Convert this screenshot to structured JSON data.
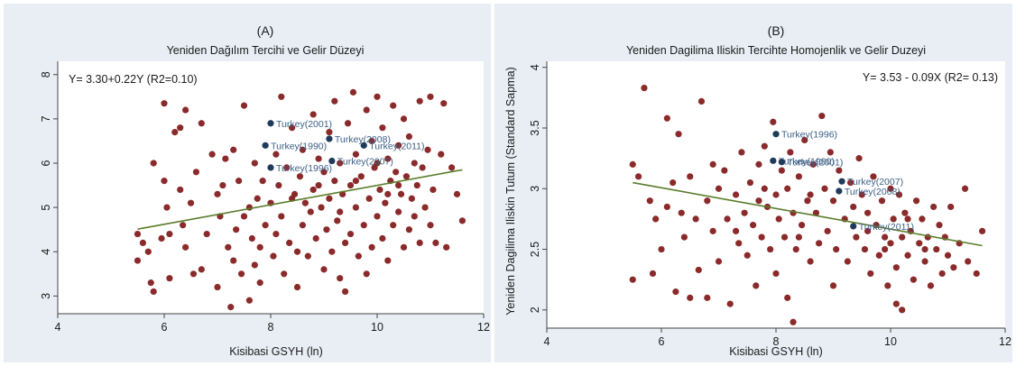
{
  "chart_data": [
    {
      "type": "scatter",
      "panel_label": "(A)",
      "title": "Yeniden Dağılım Tercihi ve Gelir Düzeyi",
      "xlabel": "Kisibasi GSYH (ln)",
      "ylabel": "",
      "xlim": [
        4,
        12
      ],
      "ylim": [
        2.6,
        8.3
      ],
      "xticks": [
        4,
        6,
        8,
        10,
        12
      ],
      "yticks": [
        3,
        4,
        5,
        6,
        7,
        8
      ],
      "equation": "Y= 3.30+0.22Y (R2=0.10)",
      "grid": false,
      "point_color": "#8b2a2a",
      "highlight_color": "#1f3b5c",
      "line_color": "#5a7d2a",
      "fit_line": {
        "x": [
          5.5,
          11.6
        ],
        "y": [
          4.51,
          5.85
        ]
      },
      "highlights": [
        {
          "label": "Turkey(2001)",
          "x": 8.0,
          "y": 6.9
        },
        {
          "label": "Turkey(2008)",
          "x": 9.1,
          "y": 6.55
        },
        {
          "label": "Turkey(1990)",
          "x": 7.9,
          "y": 6.4
        },
        {
          "label": "Turkey(2011)",
          "x": 9.75,
          "y": 6.4
        },
        {
          "label": "Turkey(2007)",
          "x": 9.15,
          "y": 6.05
        },
        {
          "label": "Turkey(1996)",
          "x": 8.0,
          "y": 5.9
        }
      ],
      "points": [
        [
          5.5,
          4.4
        ],
        [
          5.5,
          3.8
        ],
        [
          5.6,
          4.2
        ],
        [
          5.7,
          4.0
        ],
        [
          5.75,
          3.3
        ],
        [
          5.8,
          3.1
        ],
        [
          5.8,
          6.0
        ],
        [
          5.95,
          4.3
        ],
        [
          6.0,
          7.35
        ],
        [
          6.0,
          5.6
        ],
        [
          6.05,
          5.0
        ],
        [
          6.1,
          4.4
        ],
        [
          6.1,
          3.4
        ],
        [
          6.2,
          6.7
        ],
        [
          6.3,
          6.8
        ],
        [
          6.3,
          5.4
        ],
        [
          6.35,
          4.6
        ],
        [
          6.4,
          7.2
        ],
        [
          6.4,
          4.1
        ],
        [
          6.5,
          5.1
        ],
        [
          6.55,
          3.5
        ],
        [
          6.6,
          5.8
        ],
        [
          6.7,
          3.6
        ],
        [
          6.7,
          6.9
        ],
        [
          6.8,
          4.4
        ],
        [
          6.9,
          6.2
        ],
        [
          7.0,
          5.3
        ],
        [
          7.0,
          3.2
        ],
        [
          7.05,
          4.8
        ],
        [
          7.1,
          5.5
        ],
        [
          7.15,
          6.1
        ],
        [
          7.2,
          4.1
        ],
        [
          7.25,
          2.75
        ],
        [
          7.3,
          3.8
        ],
        [
          7.3,
          6.3
        ],
        [
          7.35,
          4.5
        ],
        [
          7.4,
          5.6
        ],
        [
          7.45,
          3.5
        ],
        [
          7.5,
          4.8
        ],
        [
          7.5,
          7.3
        ],
        [
          7.6,
          5.0
        ],
        [
          7.6,
          2.9
        ],
        [
          7.65,
          4.3
        ],
        [
          7.7,
          6.0
        ],
        [
          7.7,
          3.7
        ],
        [
          7.75,
          5.2
        ],
        [
          7.8,
          4.1
        ],
        [
          7.8,
          3.3
        ],
        [
          7.85,
          5.6
        ],
        [
          7.9,
          4.6
        ],
        [
          8.0,
          5.1
        ],
        [
          8.05,
          3.9
        ],
        [
          8.1,
          6.2
        ],
        [
          8.1,
          4.4
        ],
        [
          8.15,
          5.5
        ],
        [
          8.2,
          7.5
        ],
        [
          8.2,
          4.8
        ],
        [
          8.25,
          3.5
        ],
        [
          8.3,
          5.9
        ],
        [
          8.35,
          4.2
        ],
        [
          8.4,
          6.8
        ],
        [
          8.45,
          5.3
        ],
        [
          8.5,
          4.0
        ],
        [
          8.5,
          3.2
        ],
        [
          8.55,
          5.7
        ],
        [
          8.6,
          4.6
        ],
        [
          8.6,
          6.3
        ],
        [
          8.65,
          5.1
        ],
        [
          8.7,
          3.9
        ],
        [
          8.75,
          4.9
        ],
        [
          8.8,
          7.1
        ],
        [
          8.8,
          5.4
        ],
        [
          8.85,
          4.3
        ],
        [
          8.9,
          6.1
        ],
        [
          8.95,
          5.0
        ],
        [
          9.0,
          3.6
        ],
        [
          9.0,
          5.8
        ],
        [
          9.05,
          4.5
        ],
        [
          9.1,
          6.7
        ],
        [
          9.1,
          5.2
        ],
        [
          9.15,
          4.0
        ],
        [
          9.2,
          7.4
        ],
        [
          9.2,
          5.6
        ],
        [
          9.25,
          4.7
        ],
        [
          9.3,
          3.4
        ],
        [
          9.3,
          6.0
        ],
        [
          9.35,
          5.3
        ],
        [
          9.4,
          4.2
        ],
        [
          9.4,
          3.1
        ],
        [
          9.45,
          6.9
        ],
        [
          9.5,
          5.5
        ],
        [
          9.5,
          4.4
        ],
        [
          9.55,
          7.6
        ],
        [
          9.6,
          5.0
        ],
        [
          9.6,
          6.2
        ],
        [
          9.65,
          3.9
        ],
        [
          9.7,
          5.7
        ],
        [
          9.75,
          4.6
        ],
        [
          9.8,
          7.2
        ],
        [
          9.8,
          3.5
        ],
        [
          9.85,
          5.2
        ],
        [
          9.9,
          6.5
        ],
        [
          9.9,
          4.1
        ],
        [
          9.95,
          5.9
        ],
        [
          10.0,
          7.5
        ],
        [
          10.0,
          4.8
        ],
        [
          10.05,
          5.4
        ],
        [
          10.1,
          6.8
        ],
        [
          10.1,
          4.3
        ],
        [
          10.15,
          5.1
        ],
        [
          10.2,
          6.1
        ],
        [
          10.2,
          3.8
        ],
        [
          10.25,
          5.6
        ],
        [
          10.3,
          7.3
        ],
        [
          10.3,
          4.6
        ],
        [
          10.35,
          5.8
        ],
        [
          10.4,
          6.4
        ],
        [
          10.4,
          4.9
        ],
        [
          10.45,
          5.3
        ],
        [
          10.5,
          7.0
        ],
        [
          10.5,
          4.1
        ],
        [
          10.55,
          5.7
        ],
        [
          10.6,
          6.6
        ],
        [
          10.6,
          4.5
        ],
        [
          10.65,
          5.2
        ],
        [
          10.7,
          6.0
        ],
        [
          10.7,
          4.8
        ],
        [
          10.75,
          5.5
        ],
        [
          10.8,
          7.4
        ],
        [
          10.8,
          4.2
        ],
        [
          10.85,
          5.9
        ],
        [
          10.9,
          5.0
        ],
        [
          10.95,
          6.3
        ],
        [
          11.0,
          4.6
        ],
        [
          11.0,
          7.5
        ],
        [
          11.05,
          5.4
        ],
        [
          11.1,
          4.2
        ],
        [
          11.2,
          6.2
        ],
        [
          11.25,
          7.35
        ],
        [
          11.3,
          4.1
        ],
        [
          11.4,
          5.9
        ],
        [
          11.5,
          5.3
        ],
        [
          11.6,
          4.7
        ],
        [
          10.2,
          5.3
        ],
        [
          9.6,
          5.6
        ],
        [
          8.9,
          5.5
        ],
        [
          9.3,
          4.9
        ],
        [
          10.4,
          5.5
        ],
        [
          10.0,
          6.0
        ],
        [
          8.4,
          5.2
        ]
      ]
    },
    {
      "type": "scatter",
      "panel_label": "(B)",
      "title": "Yeniden Dagilima Iliskin Tercihte Homojenlik ve Gelir Duzeyi",
      "xlabel": "Kisibasi GSYH (ln)",
      "ylabel": "Yeniden Dagilima Iliskin Tutum (Standard Sapma)",
      "xlim": [
        4,
        12
      ],
      "ylim": [
        1.85,
        4.05
      ],
      "xticks": [
        4,
        6,
        8,
        10,
        12
      ],
      "yticks": [
        2,
        2.5,
        3,
        3.5,
        4
      ],
      "equation": "Y= 3.53 - 0.09X (R2= 0.13)",
      "grid": false,
      "point_color": "#8b2a2a",
      "highlight_color": "#1f3b5c",
      "line_color": "#5a7d2a",
      "fit_line": {
        "x": [
          5.5,
          11.6
        ],
        "y": [
          3.05,
          2.53
        ]
      },
      "highlights": [
        {
          "label": "Turkey(1996)",
          "x": 8.0,
          "y": 3.45
        },
        {
          "label": "Turkey(1990)",
          "x": 7.95,
          "y": 3.23
        },
        {
          "label": "Turkey(2001)",
          "x": 8.1,
          "y": 3.22
        },
        {
          "label": "Turkey(2007)",
          "x": 9.15,
          "y": 3.06
        },
        {
          "label": "Turkey(2008)",
          "x": 9.1,
          "y": 2.98
        },
        {
          "label": "Turkey(2011)",
          "x": 9.35,
          "y": 2.69
        }
      ],
      "points": [
        [
          5.5,
          3.2
        ],
        [
          5.5,
          2.25
        ],
        [
          5.6,
          3.1
        ],
        [
          5.7,
          3.83
        ],
        [
          5.8,
          2.9
        ],
        [
          5.85,
          2.3
        ],
        [
          5.9,
          2.75
        ],
        [
          6.0,
          2.5
        ],
        [
          6.1,
          3.58
        ],
        [
          6.1,
          2.85
        ],
        [
          6.2,
          3.05
        ],
        [
          6.25,
          2.15
        ],
        [
          6.3,
          3.45
        ],
        [
          6.35,
          2.8
        ],
        [
          6.4,
          2.6
        ],
        [
          6.5,
          3.1
        ],
        [
          6.5,
          2.1
        ],
        [
          6.6,
          2.75
        ],
        [
          6.65,
          2.33
        ],
        [
          6.7,
          3.72
        ],
        [
          6.8,
          2.9
        ],
        [
          6.8,
          2.1
        ],
        [
          6.9,
          2.65
        ],
        [
          7.0,
          3.0
        ],
        [
          7.0,
          2.4
        ],
        [
          7.1,
          3.15
        ],
        [
          7.15,
          2.75
        ],
        [
          7.2,
          2.05
        ],
        [
          7.3,
          2.95
        ],
        [
          7.35,
          2.55
        ],
        [
          7.4,
          3.3
        ],
        [
          7.45,
          2.8
        ],
        [
          7.5,
          2.45
        ],
        [
          7.55,
          3.05
        ],
        [
          7.6,
          2.7
        ],
        [
          7.65,
          2.2
        ],
        [
          7.7,
          3.2
        ],
        [
          7.7,
          2.9
        ],
        [
          7.75,
          2.6
        ],
        [
          7.8,
          3.35
        ],
        [
          7.85,
          2.85
        ],
        [
          7.9,
          2.5
        ],
        [
          7.95,
          3.55
        ],
        [
          8.0,
          2.95
        ],
        [
          8.0,
          2.3
        ],
        [
          8.05,
          2.75
        ],
        [
          8.1,
          3.15
        ],
        [
          8.15,
          2.6
        ],
        [
          8.2,
          3.0
        ],
        [
          8.2,
          2.1
        ],
        [
          8.25,
          3.3
        ],
        [
          8.3,
          2.8
        ],
        [
          8.3,
          1.9
        ],
        [
          8.35,
          2.5
        ],
        [
          8.4,
          3.1
        ],
        [
          8.45,
          2.7
        ],
        [
          8.5,
          3.4
        ],
        [
          8.55,
          2.9
        ],
        [
          8.6,
          2.4
        ],
        [
          8.65,
          3.2
        ],
        [
          8.7,
          2.8
        ],
        [
          8.75,
          2.55
        ],
        [
          8.8,
          3.6
        ],
        [
          8.85,
          3.0
        ],
        [
          8.9,
          2.65
        ],
        [
          8.95,
          3.3
        ],
        [
          9.0,
          2.9
        ],
        [
          9.05,
          2.5
        ],
        [
          9.1,
          3.15
        ],
        [
          9.2,
          2.75
        ],
        [
          9.25,
          2.4
        ],
        [
          9.3,
          3.05
        ],
        [
          9.35,
          2.85
        ],
        [
          9.4,
          2.6
        ],
        [
          9.45,
          3.25
        ],
        [
          9.5,
          2.95
        ],
        [
          9.55,
          2.5
        ],
        [
          9.6,
          2.8
        ],
        [
          9.65,
          2.3
        ],
        [
          9.7,
          3.1
        ],
        [
          9.75,
          2.7
        ],
        [
          9.8,
          2.45
        ],
        [
          9.85,
          2.9
        ],
        [
          9.9,
          2.6
        ],
        [
          9.95,
          2.2
        ],
        [
          10.0,
          3.0
        ],
        [
          10.0,
          2.55
        ],
        [
          10.05,
          2.75
        ],
        [
          10.1,
          2.35
        ],
        [
          10.15,
          2.95
        ],
        [
          10.2,
          2.6
        ],
        [
          10.2,
          2.0
        ],
        [
          10.25,
          2.8
        ],
        [
          10.3,
          2.45
        ],
        [
          10.35,
          2.65
        ],
        [
          10.4,
          2.25
        ],
        [
          10.45,
          2.9
        ],
        [
          10.5,
          2.55
        ],
        [
          10.55,
          2.75
        ],
        [
          10.6,
          2.4
        ],
        [
          10.65,
          2.6
        ],
        [
          10.7,
          2.2
        ],
        [
          10.75,
          2.85
        ],
        [
          10.8,
          2.5
        ],
        [
          10.85,
          2.7
        ],
        [
          10.9,
          2.3
        ],
        [
          10.95,
          2.6
        ],
        [
          11.0,
          2.45
        ],
        [
          11.05,
          2.85
        ],
        [
          11.1,
          2.35
        ],
        [
          11.2,
          2.55
        ],
        [
          11.3,
          3.0
        ],
        [
          11.35,
          2.4
        ],
        [
          11.5,
          2.3
        ],
        [
          11.6,
          2.65
        ],
        [
          10.1,
          2.05
        ],
        [
          9.0,
          2.2
        ],
        [
          8.6,
          2.95
        ],
        [
          7.3,
          2.65
        ],
        [
          6.9,
          3.2
        ],
        [
          9.6,
          2.65
        ],
        [
          10.3,
          2.75
        ],
        [
          8.4,
          2.6
        ],
        [
          7.8,
          3.0
        ],
        [
          9.9,
          2.5
        ],
        [
          10.6,
          2.5
        ]
      ]
    }
  ]
}
